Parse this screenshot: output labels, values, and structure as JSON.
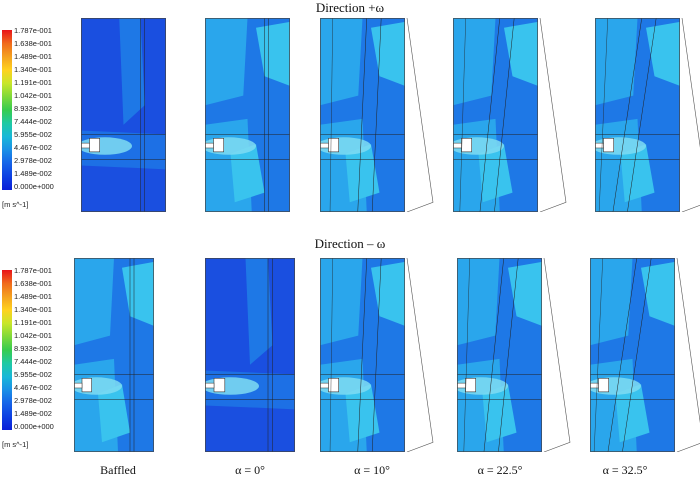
{
  "rows": [
    {
      "title": "Direction +ω"
    },
    {
      "title": "Direction – ω"
    }
  ],
  "legend": {
    "ticks": [
      "1.787e-001",
      "1.638e-001",
      "1.489e-001",
      "1.340e-001",
      "1.191e-001",
      "1.042e-001",
      "8.933e-002",
      "7.444e-002",
      "5.955e-002",
      "4.467e-002",
      "2.978e-002",
      "1.489e-002",
      "0.000e+000"
    ],
    "unit": "[m s^-1]",
    "colors": [
      "#e8141a",
      "#f06a1c",
      "#f4a11f",
      "#ffd21e",
      "#c8e62a",
      "#7fd93a",
      "#36cc4e",
      "#1fc9a3",
      "#19b8d8",
      "#1a8fe6",
      "#1663e8",
      "#0d3fe2",
      "#0a1ed8"
    ]
  },
  "columns": [
    "Baffled",
    "α = 0°",
    "α = 10°",
    "α = 22.5°",
    "α = 32.5°"
  ],
  "colors": {
    "deep": "#1a4fe0",
    "mid": "#1e78e6",
    "light": "#2aa6ec",
    "cyan": "#39c3ee",
    "pale": "#7fdcf2"
  }
}
